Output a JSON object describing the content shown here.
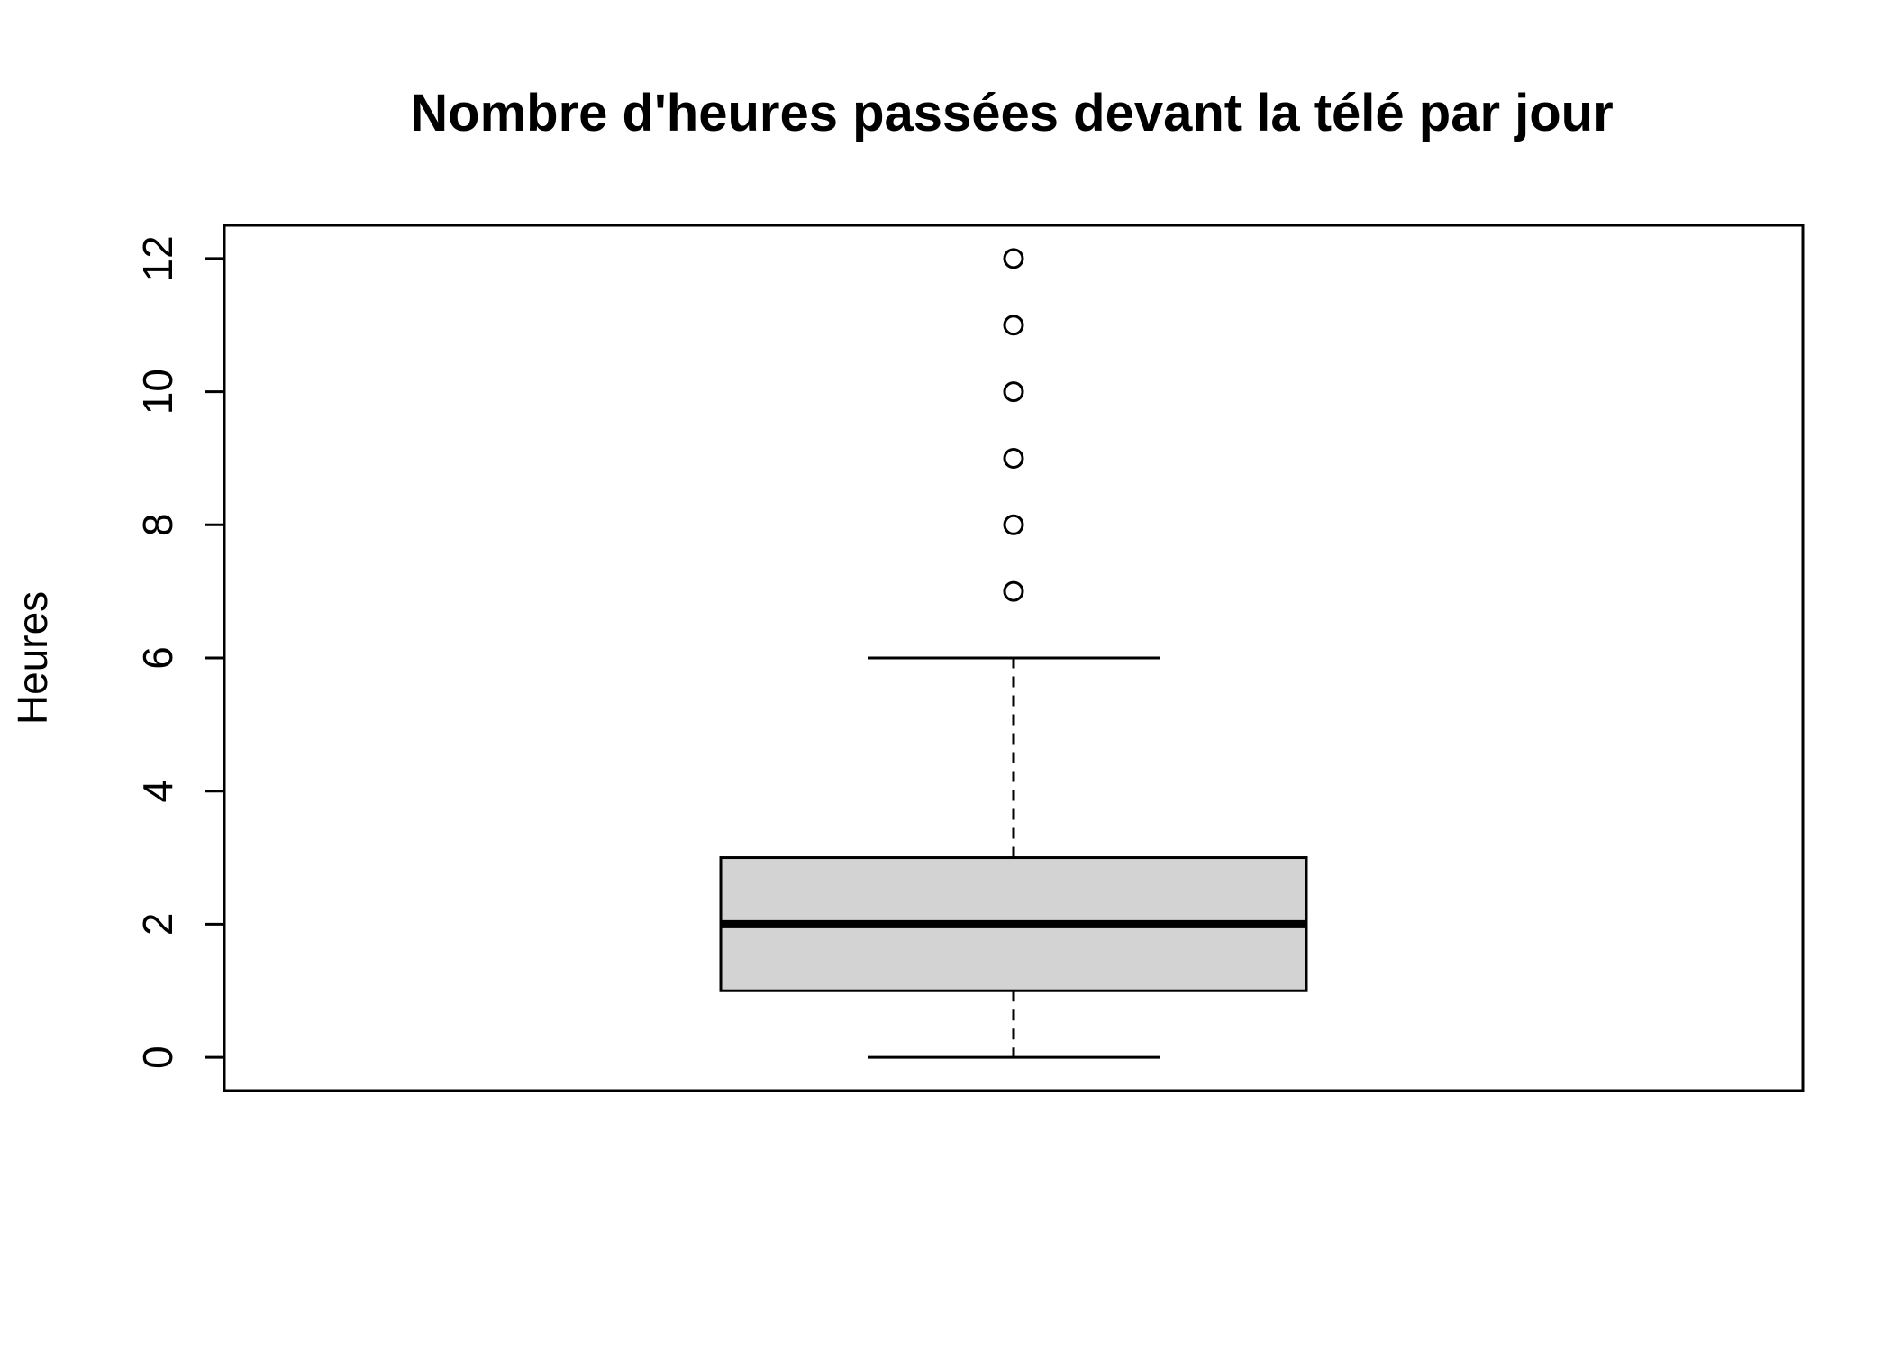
{
  "chart_data": {
    "type": "boxplot",
    "title": "Nombre d'heures passées devant la télé par jour",
    "xlabel": "",
    "ylabel": "Heures",
    "ylim": [
      -0.5,
      12.5
    ],
    "yticks": [
      0,
      2,
      4,
      6,
      8,
      10,
      12
    ],
    "grid": false,
    "box": {
      "whisker_low": 0,
      "q1": 1,
      "median": 2,
      "q3": 3,
      "whisker_high": 6
    },
    "outliers": [
      7,
      8,
      9,
      10,
      11,
      12
    ],
    "colors": {
      "box_fill": "#d3d3d3",
      "stroke": "#000000",
      "background": "#ffffff"
    }
  }
}
